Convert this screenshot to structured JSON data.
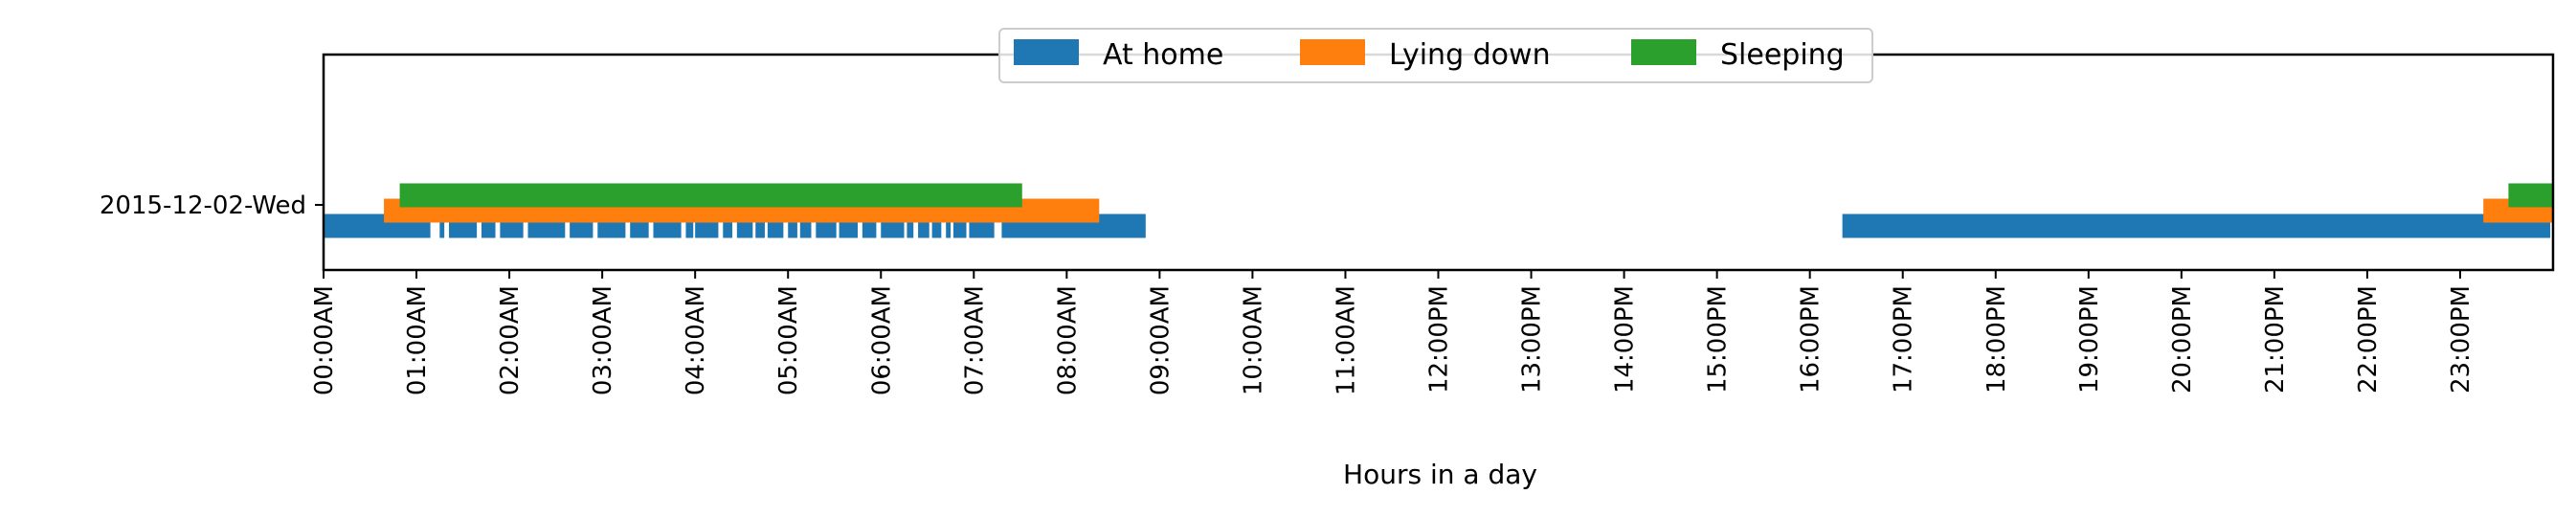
{
  "chart_data": {
    "type": "timeline",
    "xlabel": "Hours in a day",
    "ylabel": "",
    "xlim": [
      0,
      24
    ],
    "x_ticks": [
      {
        "value": 0,
        "label": "00:00AM"
      },
      {
        "value": 1,
        "label": "01:00AM"
      },
      {
        "value": 2,
        "label": "02:00AM"
      },
      {
        "value": 3,
        "label": "03:00AM"
      },
      {
        "value": 4,
        "label": "04:00AM"
      },
      {
        "value": 5,
        "label": "05:00AM"
      },
      {
        "value": 6,
        "label": "06:00AM"
      },
      {
        "value": 7,
        "label": "07:00AM"
      },
      {
        "value": 8,
        "label": "08:00AM"
      },
      {
        "value": 9,
        "label": "09:00AM"
      },
      {
        "value": 10,
        "label": "10:00AM"
      },
      {
        "value": 11,
        "label": "11:00AM"
      },
      {
        "value": 12,
        "label": "12:00PM"
      },
      {
        "value": 13,
        "label": "13:00PM"
      },
      {
        "value": 14,
        "label": "14:00PM"
      },
      {
        "value": 15,
        "label": "15:00PM"
      },
      {
        "value": 16,
        "label": "16:00PM"
      },
      {
        "value": 17,
        "label": "17:00PM"
      },
      {
        "value": 18,
        "label": "18:00PM"
      },
      {
        "value": 19,
        "label": "19:00PM"
      },
      {
        "value": 20,
        "label": "20:00PM"
      },
      {
        "value": 21,
        "label": "21:00PM"
      },
      {
        "value": 22,
        "label": "22:00PM"
      },
      {
        "value": 23,
        "label": "23:00PM"
      }
    ],
    "categories": [
      "2015-12-02-Wed"
    ],
    "legend": {
      "placement": "top-center",
      "ncol": 3
    },
    "grid": false,
    "series": [
      {
        "name": "At home",
        "color": "#1f77b4",
        "intervals": [
          [
            0.0,
            1.15
          ],
          [
            1.25,
            1.3
          ],
          [
            1.35,
            1.65
          ],
          [
            1.7,
            1.85
          ],
          [
            1.9,
            2.15
          ],
          [
            2.2,
            2.6
          ],
          [
            2.65,
            2.9
          ],
          [
            2.95,
            3.25
          ],
          [
            3.3,
            3.5
          ],
          [
            3.55,
            3.85
          ],
          [
            3.9,
            3.98
          ],
          [
            4.0,
            4.25
          ],
          [
            4.3,
            4.4
          ],
          [
            4.45,
            4.62
          ],
          [
            4.65,
            4.75
          ],
          [
            4.78,
            4.95
          ],
          [
            5.0,
            5.1
          ],
          [
            5.13,
            5.25
          ],
          [
            5.3,
            5.52
          ],
          [
            5.55,
            5.75
          ],
          [
            5.8,
            5.95
          ],
          [
            6.0,
            6.25
          ],
          [
            6.28,
            6.35
          ],
          [
            6.4,
            6.52
          ],
          [
            6.55,
            6.65
          ],
          [
            6.7,
            6.75
          ],
          [
            6.78,
            6.92
          ],
          [
            6.95,
            7.22
          ],
          [
            7.3,
            8.85
          ],
          [
            16.35,
            23.97
          ],
          [
            23.99,
            24.0
          ]
        ]
      },
      {
        "name": "Lying down",
        "color": "#ff7f0e",
        "intervals": [
          [
            0.65,
            8.35
          ],
          [
            23.25,
            24.0
          ]
        ]
      },
      {
        "name": "Sleeping",
        "color": "#2ca02c",
        "intervals": [
          [
            0.82,
            7.52
          ],
          [
            23.52,
            24.0
          ]
        ]
      }
    ]
  }
}
